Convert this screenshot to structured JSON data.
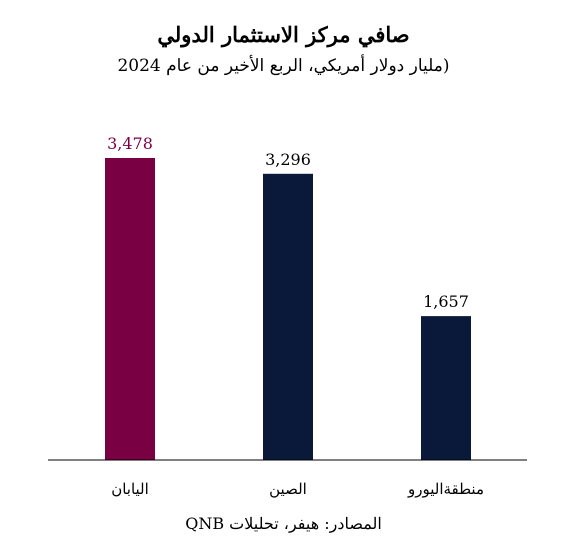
{
  "chart_data": {
    "type": "bar",
    "title": "صافي مركز الاستثمار الدولي",
    "subtitle": "(مليار دولار أمريكي، الربع الأخير من عام 2024",
    "source": "المصادر: هيفر، تحليلات QNB",
    "categories": [
      "اليابان",
      "الصين",
      "منطقةاليورو"
    ],
    "values": [
      3478,
      3296,
      1657
    ],
    "value_labels": [
      "3,478",
      "3,296",
      "1,657"
    ],
    "colors": [
      "#7a0044",
      "#0a1839",
      "#0a1839"
    ],
    "label_colors": [
      "#7a0044",
      "#000000",
      "#000000"
    ],
    "ylim": [
      0,
      4000
    ],
    "grid": false,
    "legend": "none"
  }
}
